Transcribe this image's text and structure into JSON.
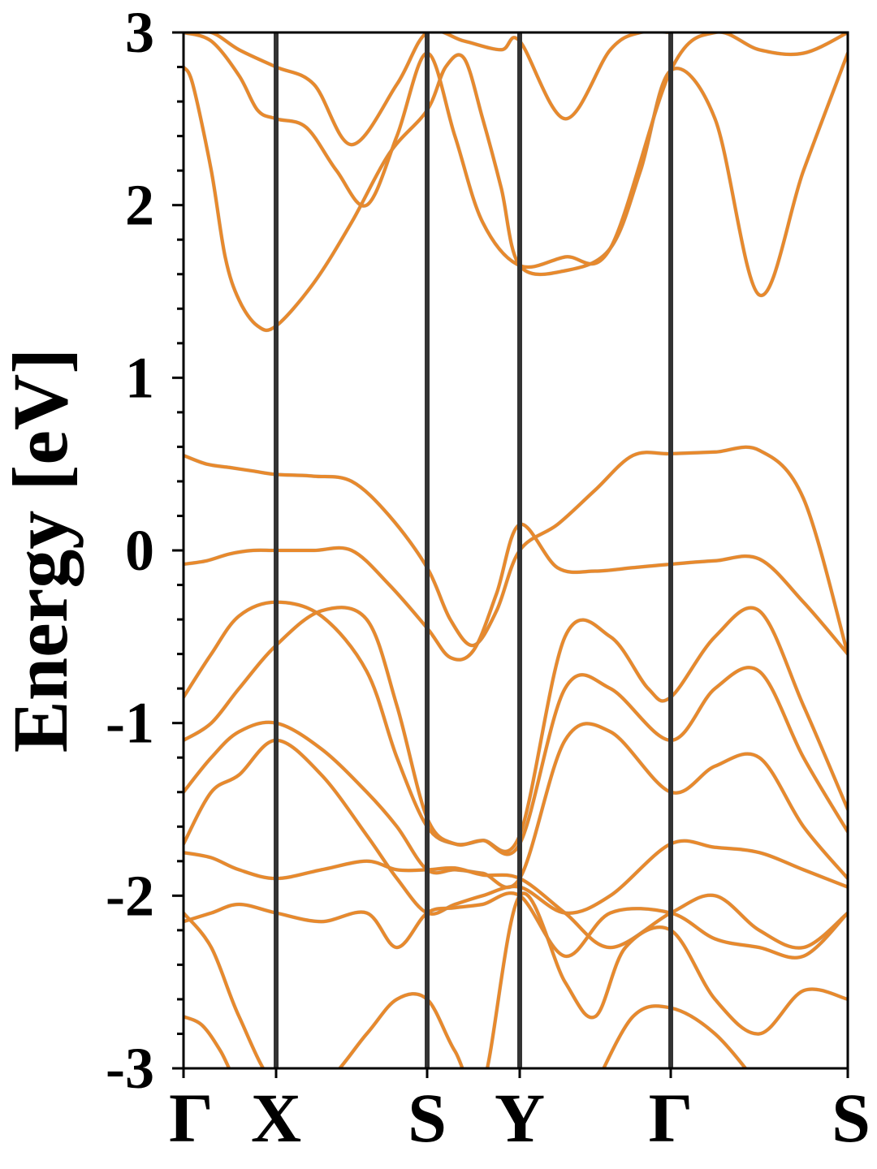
{
  "chart_data": {
    "type": "line",
    "title": "",
    "xlabel": "",
    "ylabel": "Energy [eV]",
    "ylim": [
      -3,
      3
    ],
    "grid": false,
    "legend": "none",
    "x_ticks": [
      "Γ",
      "X",
      "S",
      "Y",
      "Γ",
      "S"
    ],
    "y_ticks": [
      "-3",
      "-2",
      "-1",
      "0",
      "1",
      "2",
      "3"
    ],
    "colors": {
      "band": "#e8892c",
      "band_shadow": "#6f8fa8",
      "kpoint_line": "#333333",
      "axis": "#000000"
    },
    "series": [
      {
        "name": "",
        "x": [
          0,
          0.1,
          0.3,
          0.45,
          0.6,
          0.8,
          1,
          1.25,
          1.5,
          1.75,
          2,
          2.2,
          2.4,
          2.6,
          2.8,
          3,
          3.3,
          3.6,
          3.8,
          4,
          4.25,
          4.5,
          4.75,
          5
        ],
        "y": [
          2.8,
          2.7,
          2.2,
          1.7,
          1.45,
          1.3,
          1.3,
          1.55,
          1.9,
          2.3,
          2.55,
          2.8,
          2.85,
          2.5,
          2.1,
          1.65,
          1.62,
          1.75,
          2.2,
          2.78,
          2.5,
          1.48,
          2.2,
          2.88
        ]
      },
      {
        "name": "",
        "x": [
          0,
          0.3,
          0.6,
          0.8,
          1,
          1.2,
          1.4,
          1.6,
          1.8,
          2,
          2.3,
          2.6,
          3,
          3.3,
          3.6,
          4,
          4.25,
          4.5,
          4.75,
          5
        ],
        "y": [
          3.0,
          2.95,
          2.75,
          2.55,
          2.5,
          2.45,
          2.2,
          2.0,
          2.4,
          2.88,
          2.4,
          1.9,
          1.65,
          1.7,
          1.75,
          2.78,
          3.0,
          2.9,
          2.88,
          3.0
        ]
      },
      {
        "name": "",
        "x": [
          0,
          0.3,
          0.6,
          1,
          1.25,
          1.5,
          1.8,
          2,
          2.4,
          2.8,
          3,
          3.3,
          3.6,
          3.8,
          4
        ],
        "y": [
          3.0,
          3.0,
          2.9,
          2.8,
          2.7,
          2.35,
          2.7,
          3.0,
          2.95,
          2.9,
          2.95,
          2.5,
          2.9,
          3.0,
          3.0
        ]
      },
      {
        "name": "",
        "x": [
          0,
          0.25,
          0.5,
          0.75,
          1,
          1.25,
          1.5,
          1.75,
          2,
          2.25,
          2.5,
          2.75,
          3,
          3.25,
          3.5,
          3.75,
          4,
          4.25,
          4.5,
          4.75,
          5
        ],
        "y": [
          0.55,
          0.5,
          0.48,
          0.46,
          0.44,
          0.43,
          0.4,
          0.2,
          -0.1,
          -0.4,
          -0.55,
          -0.35,
          0.0,
          0.15,
          0.35,
          0.55,
          0.56,
          0.57,
          0.58,
          0.3,
          -0.6
        ]
      },
      {
        "name": "",
        "x": [
          0,
          0.25,
          0.5,
          0.75,
          1,
          1.25,
          1.5,
          1.75,
          2,
          2.25,
          2.5,
          2.75,
          3,
          3.25,
          3.5,
          3.75,
          4,
          4.25,
          4.5,
          4.75,
          5
        ],
        "y": [
          -0.08,
          -0.06,
          -0.02,
          0.0,
          0.0,
          0.0,
          0.0,
          -0.2,
          -0.45,
          -0.62,
          -0.58,
          -0.25,
          0.15,
          -0.1,
          -0.12,
          -0.1,
          -0.08,
          -0.06,
          -0.05,
          -0.3,
          -0.6
        ]
      },
      {
        "name": "",
        "x": [
          0,
          0.3,
          0.6,
          1,
          1.3,
          1.6,
          1.8,
          2,
          2.3,
          2.6,
          3,
          3.3,
          3.6,
          3.85,
          4,
          4.25,
          4.5,
          4.75,
          5
        ],
        "y": [
          -0.85,
          -0.6,
          -0.38,
          -0.3,
          -0.38,
          -0.7,
          -1.2,
          -1.6,
          -1.7,
          -1.68,
          -1.65,
          -0.5,
          -0.5,
          -0.8,
          -0.85,
          -0.5,
          -0.35,
          -0.9,
          -1.5
        ]
      },
      {
        "name": "",
        "x": [
          0,
          0.3,
          0.6,
          1,
          1.3,
          1.6,
          1.8,
          2,
          2.3,
          2.6,
          3,
          3.3,
          3.6,
          4,
          4.25,
          4.5,
          4.75,
          5
        ],
        "y": [
          -1.1,
          -1.0,
          -0.8,
          -0.55,
          -0.35,
          -0.4,
          -0.9,
          -1.55,
          -1.7,
          -1.68,
          -1.7,
          -0.8,
          -0.8,
          -1.1,
          -0.8,
          -0.7,
          -1.2,
          -1.63
        ]
      },
      {
        "name": "",
        "x": [
          0,
          0.3,
          0.6,
          1,
          1.3,
          1.6,
          1.8,
          2,
          2.3,
          2.6,
          3,
          3.3,
          3.6,
          4,
          4.25,
          4.5,
          4.75,
          5
        ],
        "y": [
          -1.4,
          -1.2,
          -1.05,
          -1.0,
          -1.15,
          -1.4,
          -1.6,
          -1.85,
          -1.85,
          -1.87,
          -1.9,
          -1.1,
          -1.05,
          -1.4,
          -1.25,
          -1.2,
          -1.6,
          -1.9
        ]
      },
      {
        "name": "",
        "x": [
          0,
          0.3,
          0.6,
          1,
          1.3,
          1.6,
          1.8,
          2,
          2.3,
          2.6,
          3,
          3.3,
          3.6,
          4,
          4.25,
          4.5,
          4.75,
          5
        ],
        "y": [
          -1.7,
          -1.4,
          -1.3,
          -1.1,
          -1.3,
          -1.65,
          -1.9,
          -2.1,
          -2.05,
          -2.0,
          -1.95,
          -2.1,
          -2.0,
          -1.7,
          -1.72,
          -1.75,
          -1.85,
          -1.95
        ]
      },
      {
        "name": "",
        "x": [
          0,
          0.3,
          0.6,
          1,
          1.3,
          1.6,
          1.8,
          2,
          2.3,
          2.6,
          3,
          3.3,
          3.6,
          4,
          4.25,
          4.5,
          4.75,
          5
        ],
        "y": [
          -1.75,
          -1.78,
          -1.85,
          -1.9,
          -1.85,
          -1.8,
          -1.85,
          -1.85,
          -1.84,
          -1.88,
          -1.9,
          -2.1,
          -2.3,
          -2.1,
          -2.0,
          -2.2,
          -2.3,
          -2.1
        ]
      },
      {
        "name": "",
        "x": [
          0,
          0.3,
          0.6,
          1,
          1.3,
          1.6,
          1.8,
          2,
          2.3,
          2.6,
          3,
          3.3,
          3.6,
          4,
          4.25,
          4.5,
          4.75,
          5
        ],
        "y": [
          -2.15,
          -2.1,
          -2.05,
          -2.1,
          -2.15,
          -2.1,
          -2.3,
          -2.1,
          -2.07,
          -2.05,
          -2.0,
          -2.35,
          -2.1,
          -2.1,
          -2.25,
          -2.3,
          -2.35,
          -2.1
        ]
      },
      {
        "name": "",
        "x": [
          0,
          0.3,
          0.6,
          1,
          1.3,
          1.6,
          1.8,
          2,
          2.3,
          2.6,
          3,
          3.3,
          3.5,
          3.7,
          4,
          4.25,
          4.5,
          4.75,
          5
        ],
        "y": [
          -2.1,
          -2.3,
          -2.7,
          -3.1,
          -3.1,
          -2.8,
          -2.6,
          -2.6,
          -2.9,
          -3.1,
          -2.0,
          -2.5,
          -2.7,
          -2.3,
          -2.2,
          -2.6,
          -2.8,
          -2.55,
          -2.6
        ]
      },
      {
        "name": "",
        "x": [
          0,
          0.2,
          0.4,
          0.6,
          0.8,
          1
        ],
        "y": [
          -2.7,
          -2.75,
          -2.9,
          -3.1,
          -3.1,
          -3.1
        ]
      },
      {
        "name": "",
        "x": [
          3.5,
          3.75,
          4,
          4.25,
          4.5
        ],
        "y": [
          -3.1,
          -2.7,
          -2.65,
          -2.8,
          -3.1
        ]
      }
    ]
  }
}
